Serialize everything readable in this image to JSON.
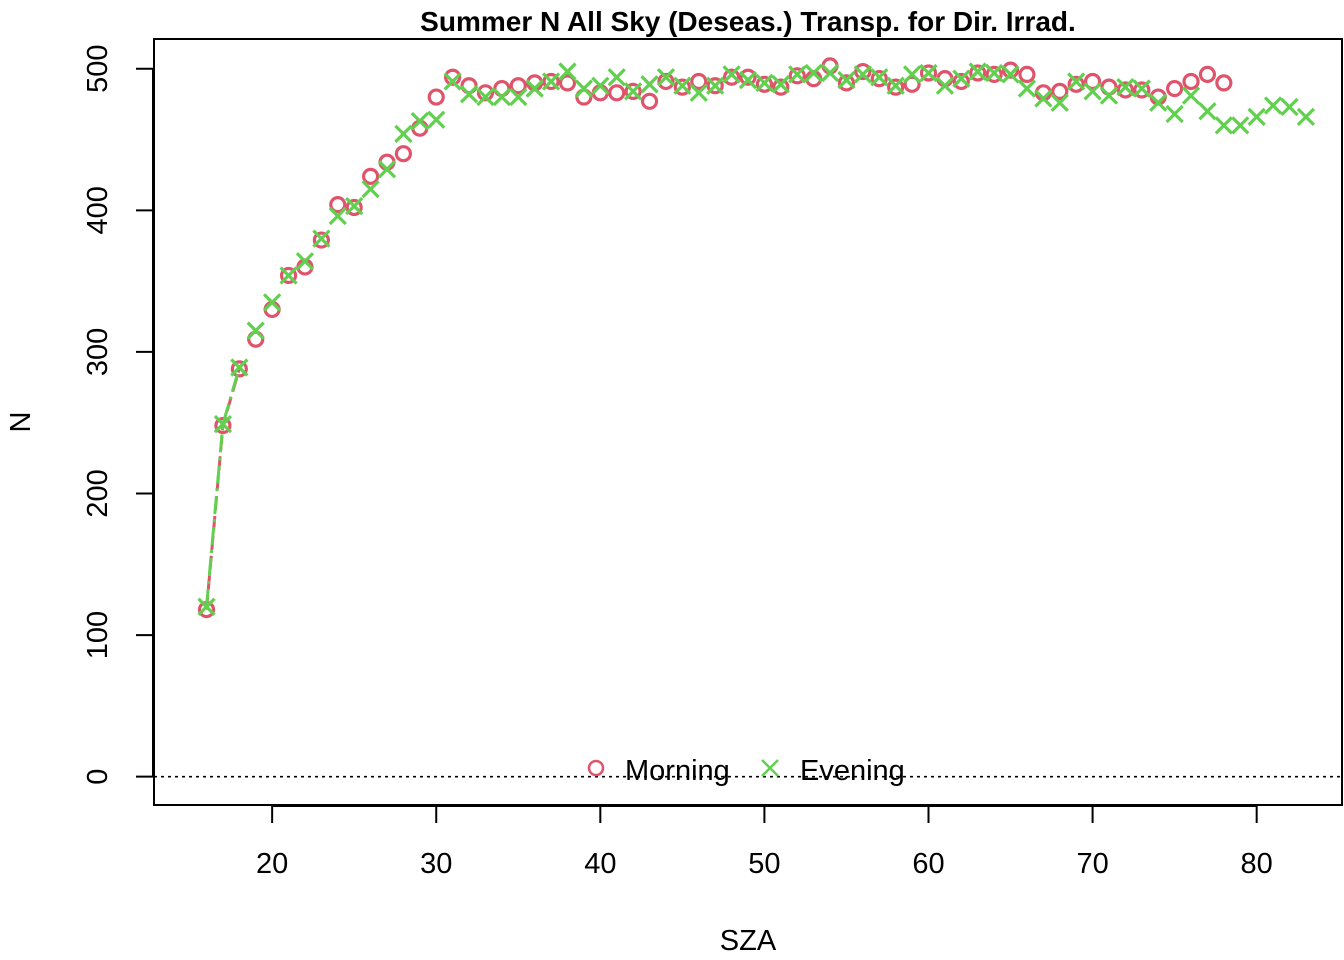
{
  "chart_data": {
    "type": "scatter",
    "title": "Summer N All Sky (Deseas.) Transp. for Dir. Irrad.",
    "xlabel": "SZA",
    "ylabel": "N",
    "xlim": [
      12.8,
      85.2
    ],
    "ylim": [
      -20,
      521
    ],
    "xticks": [
      20,
      30,
      40,
      50,
      60,
      70,
      80
    ],
    "yticks": [
      0,
      100,
      200,
      300,
      400,
      500
    ],
    "reference_line": {
      "y": 0,
      "style": "dotted"
    },
    "legend_position": "bottom-center",
    "series": [
      {
        "name": "Morning",
        "marker": "circle",
        "color": "#DF536B",
        "x": [
          16,
          17,
          18,
          19,
          20,
          21,
          22,
          23,
          24,
          25,
          26,
          27,
          28,
          29,
          30,
          31,
          32,
          33,
          34,
          35,
          36,
          37,
          38,
          39,
          40,
          41,
          42,
          43,
          44,
          45,
          46,
          47,
          48,
          49,
          50,
          51,
          52,
          53,
          54,
          55,
          56,
          57,
          58,
          59,
          60,
          61,
          62,
          63,
          64,
          65,
          66,
          67,
          68,
          69,
          70,
          71,
          72,
          73,
          74,
          75,
          76,
          77,
          78
        ],
        "y": [
          118,
          248,
          288,
          309,
          330,
          354,
          360,
          379,
          404,
          402,
          424,
          434,
          440,
          458,
          480,
          494,
          488,
          483,
          486,
          488,
          490,
          491,
          490,
          480,
          483,
          483,
          484,
          477,
          491,
          487,
          491,
          488,
          494,
          494,
          489,
          487,
          495,
          493,
          502,
          490,
          498,
          493,
          487,
          489,
          497,
          493,
          491,
          497,
          496,
          499,
          496,
          483,
          484,
          489,
          491,
          487,
          485,
          485,
          480,
          486,
          491,
          496,
          490
        ]
      },
      {
        "name": "Evening",
        "marker": "x",
        "color": "#61D04F",
        "x": [
          16,
          17,
          18,
          19,
          20,
          21,
          22,
          23,
          24,
          25,
          26,
          27,
          28,
          29,
          30,
          31,
          32,
          33,
          34,
          35,
          36,
          37,
          38,
          39,
          40,
          41,
          42,
          43,
          44,
          45,
          46,
          47,
          48,
          49,
          50,
          51,
          52,
          53,
          54,
          55,
          56,
          57,
          58,
          59,
          60,
          61,
          62,
          63,
          64,
          65,
          66,
          67,
          68,
          69,
          70,
          71,
          72,
          73,
          74,
          75,
          76,
          77,
          78,
          79,
          80,
          81,
          82,
          83
        ],
        "y": [
          120,
          249,
          289,
          315,
          335,
          354,
          364,
          380,
          396,
          403,
          415,
          429,
          454,
          463,
          464,
          491,
          482,
          480,
          480,
          480,
          486,
          491,
          498,
          486,
          488,
          494,
          484,
          489,
          494,
          488,
          483,
          488,
          496,
          492,
          490,
          489,
          496,
          497,
          497,
          492,
          496,
          494,
          488,
          496,
          497,
          488,
          493,
          498,
          497,
          496,
          486,
          479,
          476,
          491,
          484,
          481,
          487,
          486,
          476,
          468,
          481,
          470,
          460,
          460,
          466,
          474,
          473,
          466
        ]
      }
    ]
  }
}
